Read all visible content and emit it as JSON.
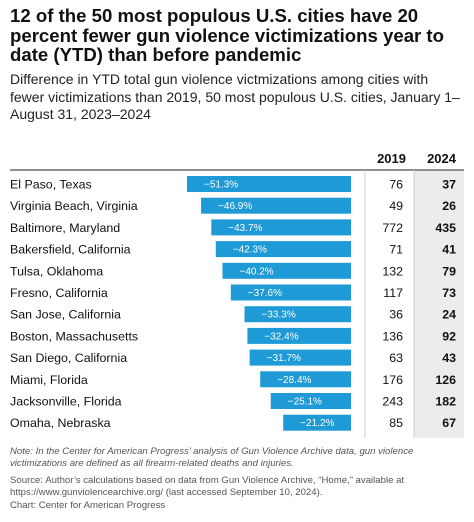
{
  "title": "12 of the 50 most populous U.S. cities have 20 percent fewer gun violence victimizations year to date (YTD) than before pandemic",
  "subtitle": "Difference in YTD total gun violence victmizations among cities with fewer victimizations than 2019, 50 most populous U.S. cities, January 1–August 31, 2023–2024",
  "note": "Note: In the Center for American Progress’ analysis of Gun Violence Archive data, gun violence victimizations are defined as all firearm-related deaths and injuries.",
  "source": "Source: Author’s calculations based on data from Gun Violence Archive, “Home,” available at https://www.gunviolencearchive.org/ (last accessed September 10, 2024).",
  "credit": "Chart: Center for American Progress",
  "colors": {
    "bar": "#1e9ad6",
    "col2024_bg": "#ececec",
    "divider": "#d0d0d0"
  },
  "chart_data": {
    "type": "table",
    "columns": [
      "2019",
      "2024"
    ],
    "categories": [
      "El Paso, Texas",
      "Virginia Beach, Virginia",
      "Baltimore, Maryland",
      "Bakersfield, California",
      "Tulsa, Oklahoma",
      "Fresno, California",
      "San Jose, California",
      "Boston, Massachusetts",
      "San Diego, California",
      "Miami, Florida",
      "Jacksonville, Florida",
      "Omaha, Nebraska"
    ],
    "change_labels": [
      "−51.3%",
      "−46.9%",
      "−43.7%",
      "−42.3%",
      "−40.2%",
      "−37.6%",
      "−33.3%",
      "−32.4%",
      "−31.7%",
      "−28.4%",
      "−25.1%",
      "−21.2%"
    ],
    "series": [
      {
        "name": "Difference",
        "values": [
          -51.3,
          -46.9,
          -43.7,
          -42.3,
          -40.2,
          -37.6,
          -33.3,
          -32.4,
          -31.7,
          -28.4,
          -25.1,
          -21.2
        ]
      },
      {
        "name": "2019",
        "values": [
          76,
          49,
          772,
          71,
          132,
          117,
          36,
          136,
          63,
          176,
          243,
          85
        ]
      },
      {
        "name": "2024",
        "values": [
          37,
          26,
          435,
          41,
          79,
          73,
          24,
          92,
          43,
          126,
          182,
          67
        ]
      }
    ]
  }
}
